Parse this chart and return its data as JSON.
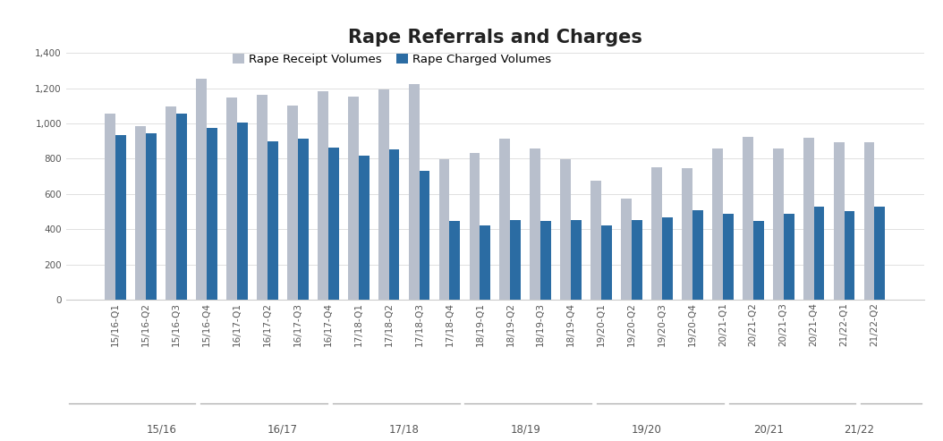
{
  "title": "Rape Referrals and Charges",
  "labels": [
    "15/16-Q1",
    "15/16-Q2",
    "15/16-Q3",
    "15/16-Q4",
    "16/17-Q1",
    "16/17-Q2",
    "16/17-Q3",
    "16/17-Q4",
    "17/18-Q1",
    "17/18-Q2",
    "17/18-Q3",
    "17/18-Q4",
    "18/19-Q1",
    "18/19-Q2",
    "18/19-Q3",
    "18/19-Q4",
    "19/20-Q1",
    "19/20-Q2",
    "19/20-Q3",
    "19/20-Q4",
    "20/21-Q1",
    "20/21-Q2",
    "20/21-Q3",
    "20/21-Q4",
    "21/22-Q1",
    "21/22-Q2"
  ],
  "receipt_values": [
    1055,
    985,
    1095,
    1255,
    1145,
    1160,
    1100,
    1185,
    1150,
    1195,
    1225,
    795,
    835,
    915,
    860,
    795,
    675,
    575,
    750,
    745,
    860,
    925,
    860,
    920,
    895,
    895
  ],
  "charged_values": [
    935,
    945,
    1055,
    975,
    1005,
    900,
    915,
    865,
    820,
    855,
    730,
    445,
    420,
    455,
    445,
    455,
    420,
    455,
    470,
    510,
    490,
    450,
    490,
    530,
    505,
    530
  ],
  "group_labels": [
    "15/16",
    "16/17",
    "17/18",
    "18/19",
    "19/20",
    "20/21",
    "21/22"
  ],
  "group_sizes": [
    4,
    4,
    4,
    4,
    4,
    4,
    2
  ],
  "receipt_color": "#b8bfcc",
  "charged_color": "#2b6ca3",
  "legend_receipt": "Rape Receipt Volumes",
  "legend_charged": "Rape Charged Volumes",
  "ylim": [
    0,
    1400
  ],
  "yticks": [
    0,
    200,
    400,
    600,
    800,
    1000,
    1200,
    1400
  ],
  "background_color": "#ffffff",
  "title_fontsize": 15,
  "tick_fontsize": 7.5,
  "legend_fontsize": 9.5
}
